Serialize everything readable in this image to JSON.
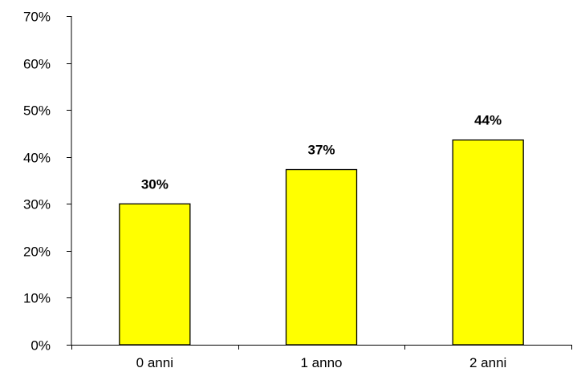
{
  "chart_data": {
    "type": "bar",
    "categories": [
      "0 anni",
      "1 anno",
      "2 anni"
    ],
    "values": [
      30,
      37.3,
      43.6
    ],
    "data_labels": [
      "30%",
      "37%",
      "44%"
    ],
    "ylim": [
      0,
      70
    ],
    "yticks": [
      0,
      10,
      20,
      30,
      40,
      50,
      60,
      70
    ],
    "ytick_labels": [
      "0%",
      "10%",
      "20%",
      "30%",
      "40%",
      "50%",
      "60%",
      "70%"
    ],
    "title": "",
    "xlabel": "",
    "ylabel": "",
    "grid": false,
    "legend": "none",
    "bar_color": "#ffff00",
    "bar_edge_color": "#000000"
  }
}
